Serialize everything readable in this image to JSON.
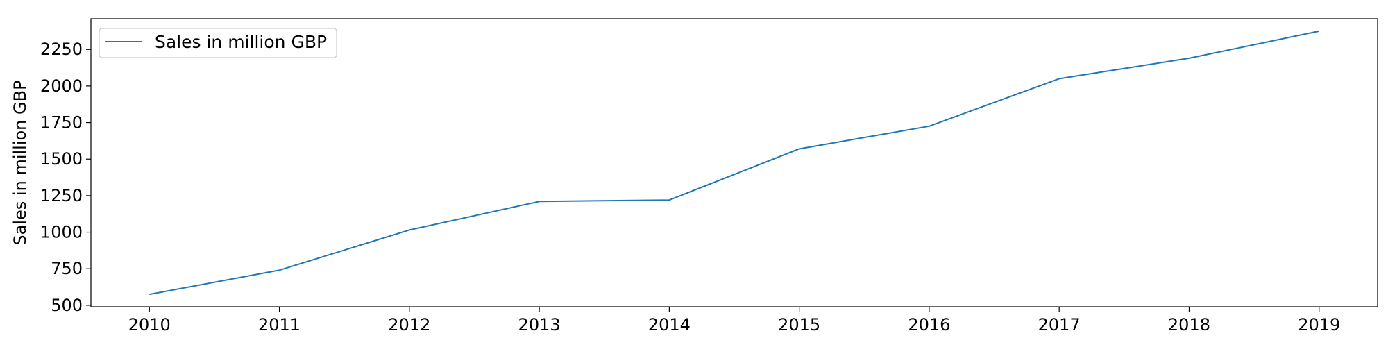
{
  "chart_data": {
    "type": "line",
    "title": "",
    "xlabel": "",
    "ylabel": "Sales in million GBP",
    "x": [
      2010,
      2011,
      2012,
      2013,
      2014,
      2015,
      2016,
      2017,
      2018,
      2019
    ],
    "series": [
      {
        "name": "Sales in million GBP",
        "color": "#1f77b4",
        "values": [
          575,
          740,
          1015,
          1210,
          1220,
          1570,
          1725,
          2050,
          2190,
          2375
        ]
      }
    ],
    "xlim": [
      2009.55,
      2019.45
    ],
    "ylim": [
      490,
      2460
    ],
    "xticks": [
      2010,
      2011,
      2012,
      2013,
      2014,
      2015,
      2016,
      2017,
      2018,
      2019
    ],
    "yticks": [
      500,
      750,
      1000,
      1250,
      1500,
      1750,
      2000,
      2250
    ],
    "grid": false,
    "legend_position": "upper-left"
  }
}
